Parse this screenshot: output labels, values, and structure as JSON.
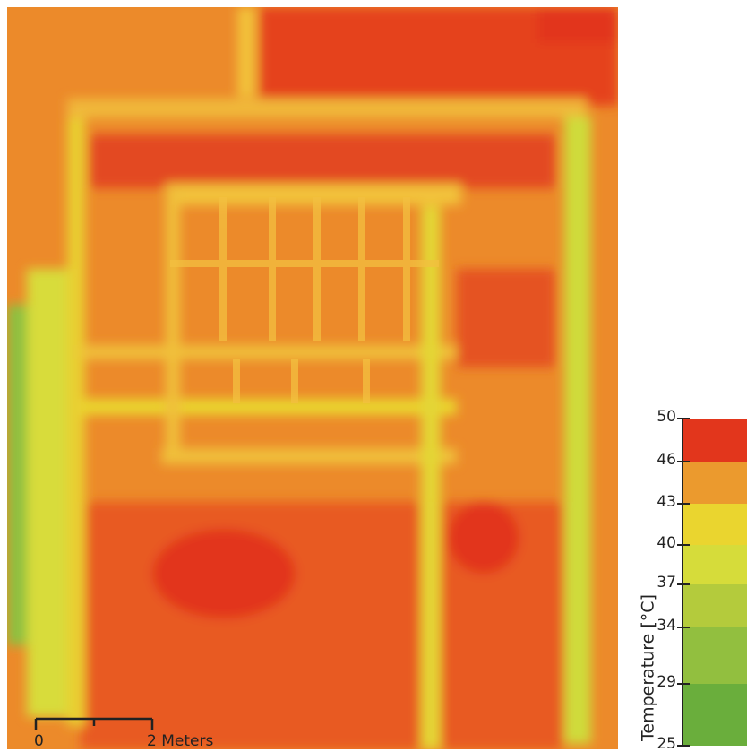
{
  "map": {
    "scale_bar": {
      "start_label": "0",
      "end_label": "2 Meters"
    },
    "legend": {
      "title": "Temperature [°C]",
      "ticks": [
        50,
        46,
        43,
        40,
        37,
        34,
        29,
        25
      ],
      "colors": [
        "#e2361c",
        "#eb9a2e",
        "#ead52f",
        "#d6dc3a",
        "#b4cb3c",
        "#92bf3f",
        "#6aae3c"
      ]
    }
  }
}
